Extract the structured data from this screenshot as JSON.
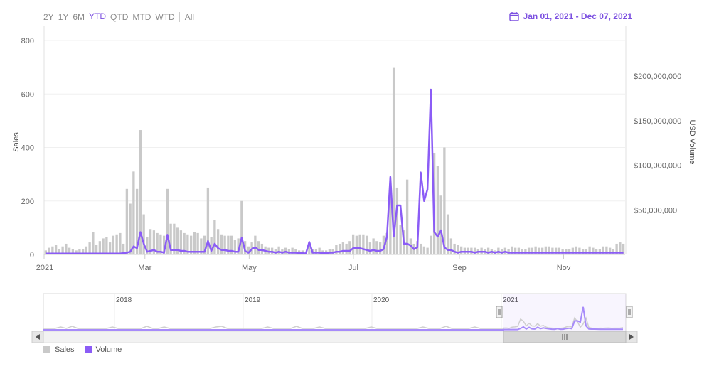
{
  "range_selector": {
    "buttons": [
      "2Y",
      "1Y",
      "6M",
      "YTD",
      "QTD",
      "MTD",
      "WTD",
      "All"
    ],
    "active": "YTD"
  },
  "date_range": {
    "label": "Jan 01, 2021 - Dec 07, 2021",
    "icon": "calendar-icon"
  },
  "colors": {
    "accent": "#7b4fe0",
    "sales": "#c9c9c9",
    "volume": "#8b5cf6"
  },
  "legend": [
    {
      "label": "Sales",
      "color": "#c9c9c9"
    },
    {
      "label": "Volume",
      "color": "#8b5cf6"
    }
  ],
  "navigator": {
    "years": [
      "2018",
      "2019",
      "2020",
      "2021"
    ]
  },
  "chart_data": {
    "type": "bar",
    "x_start": "2021-01-01",
    "x_end": "2021-12-07",
    "x_ticks": [
      "2021",
      "Mar",
      "May",
      "Jul",
      "Sep",
      "Nov"
    ],
    "ylabel": "Sales",
    "ylabel2": "USD Volume",
    "ylim": [
      0,
      800
    ],
    "ylim2": [
      0,
      240000000
    ],
    "y_ticks": [
      "0",
      "200",
      "400",
      "600",
      "800"
    ],
    "y2_ticks": [
      "$50,000,000",
      "$100,000,000",
      "$150,000,000",
      "$200,000,000"
    ],
    "grid": true,
    "series": [
      {
        "name": "Sales",
        "type": "bar",
        "color": "#c9c9c9",
        "values": [
          15,
          25,
          30,
          35,
          20,
          30,
          40,
          25,
          20,
          15,
          20,
          20,
          30,
          45,
          85,
          35,
          50,
          60,
          65,
          45,
          70,
          75,
          80,
          40,
          245,
          190,
          310,
          245,
          465,
          150,
          65,
          95,
          90,
          80,
          75,
          70,
          245,
          115,
          115,
          100,
          90,
          80,
          75,
          70,
          85,
          80,
          60,
          70,
          250,
          65,
          130,
          95,
          75,
          70,
          70,
          70,
          55,
          60,
          200,
          50,
          30,
          45,
          70,
          50,
          40,
          30,
          25,
          25,
          20,
          30,
          20,
          25,
          20,
          25,
          20,
          15,
          15,
          10,
          45,
          20,
          20,
          25,
          15,
          15,
          20,
          20,
          35,
          40,
          45,
          40,
          50,
          75,
          70,
          75,
          75,
          70,
          45,
          60,
          50,
          45,
          70,
          80,
          255,
          700,
          250,
          110,
          90,
          280,
          60,
          40,
          50,
          40,
          30,
          25,
          70,
          380,
          330,
          220,
          400,
          150,
          60,
          40,
          35,
          30,
          25,
          25,
          25,
          25,
          20,
          25,
          20,
          25,
          20,
          15,
          25,
          20,
          25,
          20,
          30,
          25,
          25,
          20,
          20,
          25,
          25,
          30,
          25,
          25,
          30,
          30,
          25,
          25,
          25,
          20,
          20,
          20,
          25,
          30,
          25,
          20,
          20,
          30,
          25,
          20,
          20,
          30,
          30,
          25,
          20,
          40,
          45,
          40
        ]
      },
      {
        "name": "Volume",
        "type": "line",
        "color": "#8b5cf6",
        "values": [
          1000000,
          1000000,
          1000000,
          1000000,
          1000000,
          1000000,
          1000000,
          1000000,
          1000000,
          1000000,
          1000000,
          1000000,
          1000000,
          1000000,
          1000000,
          1000000,
          1000000,
          1000000,
          1000000,
          1000000,
          1000000,
          1000000,
          1000000,
          1500000,
          2000000,
          3000000,
          9000000,
          7000000,
          25000000,
          12000000,
          3000000,
          4000000,
          5000000,
          3000000,
          3000000,
          2000000,
          22000000,
          5000000,
          5000000,
          5000000,
          4000000,
          4000000,
          3000000,
          3000000,
          3000000,
          3000000,
          3000000,
          3000000,
          15000000,
          4000000,
          12000000,
          7000000,
          5000000,
          5000000,
          4000000,
          4000000,
          3000000,
          3000000,
          19000000,
          4000000,
          2000000,
          6000000,
          8000000,
          5000000,
          5000000,
          4000000,
          3000000,
          3000000,
          2000000,
          3000000,
          2000000,
          3000000,
          2000000,
          2000000,
          2000000,
          1500000,
          1500000,
          1000000,
          14000000,
          2000000,
          2000000,
          2000000,
          1500000,
          1500000,
          2000000,
          2000000,
          3000000,
          3000000,
          4000000,
          4000000,
          4000000,
          7000000,
          7000000,
          7000000,
          6000000,
          5000000,
          4000000,
          5000000,
          4000000,
          4000000,
          6000000,
          20000000,
          87000000,
          20000000,
          55000000,
          55000000,
          12000000,
          12000000,
          10000000,
          6000000,
          8000000,
          92000000,
          60000000,
          73000000,
          185000000,
          25000000,
          20000000,
          27000000,
          8000000,
          5000000,
          5000000,
          3000000,
          2000000,
          3000000,
          3000000,
          3000000,
          3000000,
          2000000,
          3000000,
          3000000,
          3000000,
          2000000,
          3000000,
          2000000,
          3000000,
          2000000,
          3000000,
          2000000,
          2000000,
          2000000,
          2000000,
          2000000,
          2000000,
          2000000,
          2000000,
          2000000,
          2000000,
          2000000,
          2000000,
          2000000,
          2000000,
          2000000,
          2000000,
          2000000,
          2000000,
          2000000,
          2000000,
          2000000,
          2000000,
          2000000,
          2000000,
          2000000,
          2000000,
          2000000,
          2000000,
          2000000,
          2000000,
          2000000,
          2000000,
          2000000,
          2000000,
          2000000
        ]
      }
    ]
  }
}
